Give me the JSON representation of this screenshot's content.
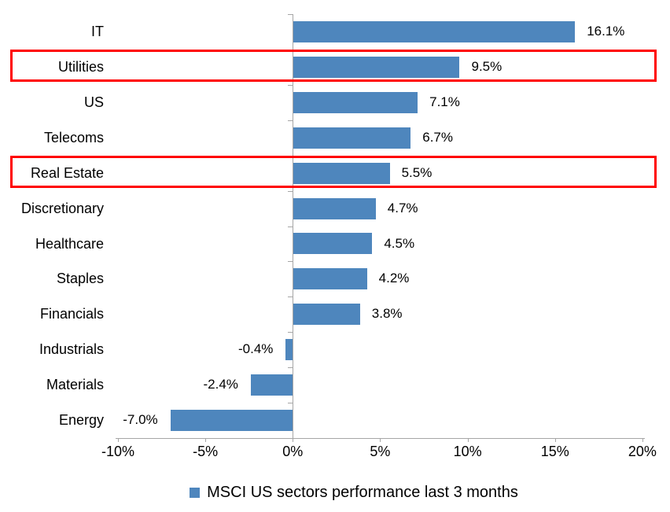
{
  "chart_data": {
    "type": "bar",
    "orientation": "horizontal",
    "title": "",
    "categories": [
      "IT",
      "Utilities",
      "US",
      "Telecoms",
      "Real Estate",
      "Discretionary",
      "Healthcare",
      "Staples",
      "Financials",
      "Industrials",
      "Materials",
      "Energy"
    ],
    "values": [
      16.1,
      9.5,
      7.1,
      6.7,
      5.5,
      4.7,
      4.5,
      4.2,
      3.8,
      -0.4,
      -2.4,
      -7.0
    ],
    "value_labels": [
      "16.1%",
      "9.5%",
      "7.1%",
      "6.7%",
      "5.5%",
      "4.7%",
      "4.5%",
      "4.2%",
      "3.8%",
      "-0.4%",
      "-2.4%",
      "-7.0%"
    ],
    "x_tick_labels": [
      "-10%",
      "-5%",
      "0%",
      "5%",
      "10%",
      "15%",
      "20%"
    ],
    "x_tick_values": [
      -10,
      -5,
      0,
      5,
      10,
      15,
      20
    ],
    "xlim": [
      -10,
      20
    ],
    "grid": false,
    "legend": "MSCI US sectors performance last 3 months",
    "legend_position": "bottom",
    "bar_color": "#4e86bd",
    "axis_color": "#a6a6a6",
    "text_color": "#000000",
    "highlight_color": "#ff0000",
    "highlighted_categories": [
      "Utilities",
      "Real Estate"
    ]
  }
}
